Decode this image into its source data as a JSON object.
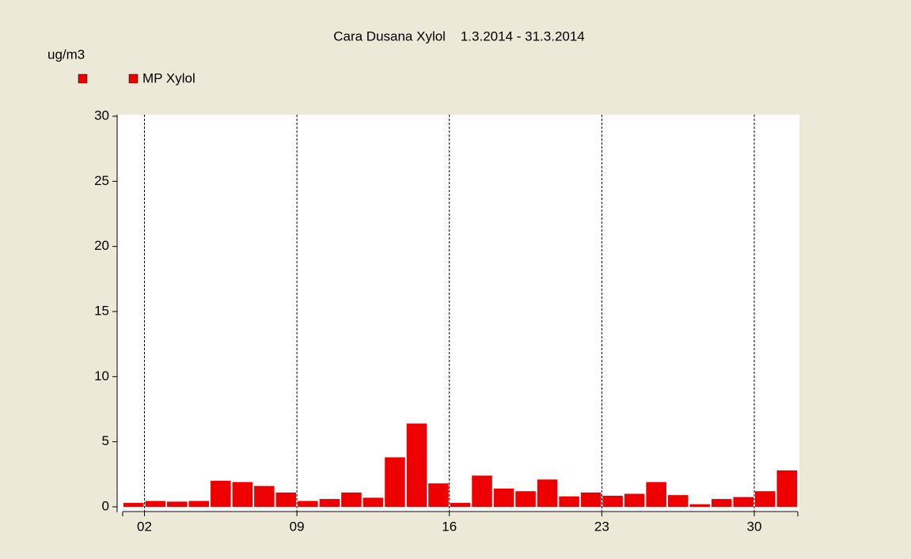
{
  "chart_data": {
    "type": "bar",
    "title": "Cara Dusana Xylol    1.3.2014 - 31.3.2014",
    "y_label": "ug/m3",
    "series": [
      {
        "name": "MP Xylol",
        "color": "#ee0000",
        "values": [
          0.3,
          0.45,
          0.4,
          0.45,
          2.0,
          1.9,
          1.6,
          1.1,
          0.45,
          0.6,
          1.1,
          0.7,
          3.8,
          6.4,
          1.8,
          0.3,
          2.4,
          1.4,
          1.2,
          2.1,
          0.8,
          1.1,
          0.85,
          1.0,
          1.9,
          0.9,
          0.2,
          0.6,
          0.75,
          1.2,
          2.8
        ]
      }
    ],
    "x": [
      1,
      2,
      3,
      4,
      5,
      6,
      7,
      8,
      9,
      10,
      11,
      12,
      13,
      14,
      15,
      16,
      17,
      18,
      19,
      20,
      21,
      22,
      23,
      24,
      25,
      26,
      27,
      28,
      29,
      30,
      31
    ],
    "xlim": [
      1,
      32
    ],
    "xticks": [
      {
        "value": 2,
        "label": "02"
      },
      {
        "value": 9,
        "label": "09"
      },
      16,
      23,
      30
    ],
    "ylim": [
      0,
      30
    ],
    "yticks": [
      0,
      5,
      10,
      15,
      20,
      25,
      30
    ],
    "grid": true
  }
}
